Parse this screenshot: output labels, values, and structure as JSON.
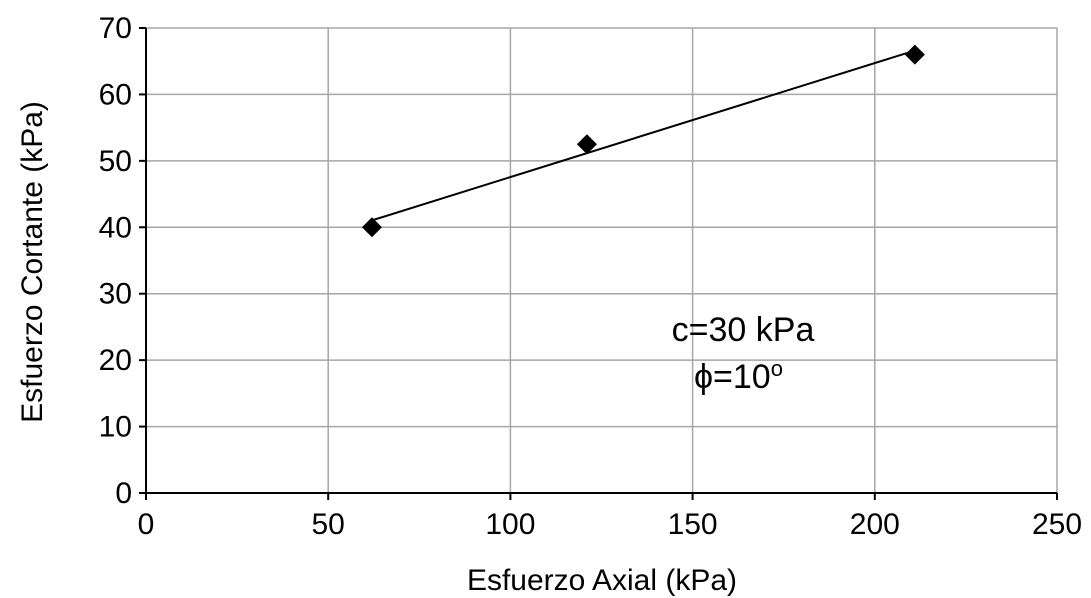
{
  "chart_data": {
    "type": "scatter",
    "xlabel": "Esfuerzo Axial (kPa)",
    "ylabel": "Esfuerzo Cortante (kPa)",
    "xlim": [
      0,
      250
    ],
    "ylim": [
      0,
      70
    ],
    "xticks": [
      0,
      50,
      100,
      150,
      200,
      250
    ],
    "yticks": [
      0,
      10,
      20,
      30,
      40,
      50,
      60,
      70
    ],
    "grid": {
      "x": true,
      "y": true
    },
    "series": [
      {
        "points": [
          {
            "x": 62,
            "y": 40
          },
          {
            "x": 121,
            "y": 52.5
          },
          {
            "x": 211,
            "y": 66
          }
        ],
        "marker": "diamond",
        "color": "#000000"
      }
    ],
    "trendline": {
      "x_start": 62,
      "x_end": 211,
      "intercept": 30.4,
      "slope": 0.1716,
      "color": "#000000"
    },
    "annotations": {
      "line1": "c=30 kPa",
      "line2_symbol": "ϕ",
      "line2_value": "=10",
      "line2_suffix": "o"
    },
    "colors": {
      "gridline": "#a6a6a6",
      "axis": "#000000",
      "marker": "#000000"
    }
  }
}
